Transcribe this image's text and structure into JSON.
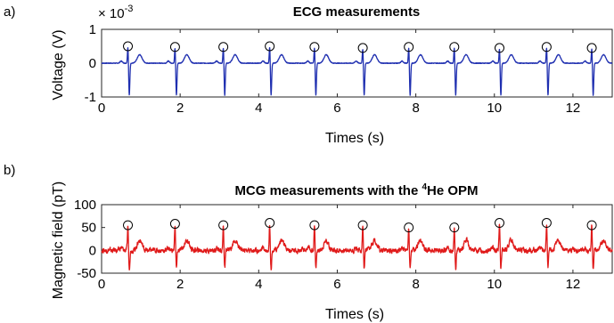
{
  "chart_data": [
    {
      "panel_label": "a)",
      "type": "line",
      "title": "ECG measurements",
      "xlabel": "Times (s)",
      "ylabel": "Voltage (V)",
      "exponent_label": "× 10",
      "exponent_power": "-3",
      "xlim": [
        0,
        13
      ],
      "ylim": [
        -1,
        1
      ],
      "xticks": [
        "0",
        "2",
        "4",
        "6",
        "8",
        "10",
        "12"
      ],
      "yticks": [
        "-1",
        "0",
        "1"
      ],
      "line_color": "#1f2fb0",
      "baseline": 0.0,
      "peak_times": [
        0.67,
        1.87,
        3.1,
        4.28,
        5.42,
        6.65,
        7.82,
        8.98,
        10.13,
        11.33,
        12.48
      ],
      "peak_values": [
        0.5,
        0.48,
        0.48,
        0.5,
        0.48,
        0.45,
        0.48,
        0.48,
        0.45,
        0.48,
        0.45
      ],
      "r_amplitude": 0.5,
      "s_trough": -0.95,
      "t_wave_amplitude": 0.25
    },
    {
      "panel_label": "b)",
      "type": "line",
      "title_prefix": "MCG measurements with the ",
      "title_sup": "4",
      "title_suffix": "He OPM",
      "xlabel": "Times (s)",
      "ylabel": "Magnetic field (pT)",
      "xlim": [
        0,
        13
      ],
      "ylim": [
        -50,
        100
      ],
      "xticks": [
        "0",
        "2",
        "4",
        "6",
        "8",
        "10",
        "12"
      ],
      "yticks": [
        "-50",
        "0",
        "50",
        "100"
      ],
      "line_color": "#e01a1a",
      "baseline": 0,
      "peak_times": [
        0.67,
        1.87,
        3.1,
        4.28,
        5.42,
        6.65,
        7.82,
        8.98,
        10.13,
        11.33,
        12.48
      ],
      "peak_values": [
        55,
        58,
        55,
        60,
        55,
        55,
        50,
        50,
        60,
        60,
        55
      ],
      "r_amplitude": 55,
      "s_trough": -40,
      "t_wave_amplitude": 22,
      "noise_amplitude": 8
    }
  ]
}
